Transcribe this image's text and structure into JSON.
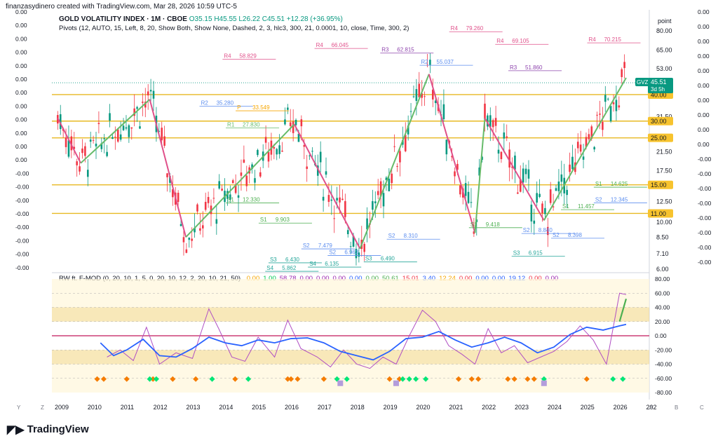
{
  "header": {
    "snapshot": "finanzasydinero created with TradingView.com, Mar 28, 2026 10:59 UTC-5"
  },
  "symbol": {
    "name": "GOLD VOLATILITY INDEX · 1M · CBOE",
    "ohlc": "O35.15  H45.55  L26.22  C45.51  +12.28 (+36.95%)"
  },
  "pivots_legend": "Pivots (12, AUTO, 15, Left, 8, 20, Show Both, Show None, Dashed, 2, 3, hlc3, 300, 21, 0.0001, 10, close, Time, 300, 2)",
  "indicator": {
    "name": "RW ft. F-MOD (0, 20, 10, 1, 5, 0, 20, 10, 12, 2, 20, 10, 21, 50)",
    "values": [
      {
        "text": "0.00",
        "color": "#f7a600"
      },
      {
        "text": "1.00",
        "color": "#00c853"
      },
      {
        "text": "58.78",
        "color": "#9c27b0"
      },
      {
        "text": "0.00",
        "color": "#9c27b0"
      },
      {
        "text": "0.00",
        "color": "#9c27b0"
      },
      {
        "text": "0.00",
        "color": "#9c27b0"
      },
      {
        "text": "0.00",
        "color": "#2962ff"
      },
      {
        "text": "0.00",
        "color": "#4caf50"
      },
      {
        "text": "50.61",
        "color": "#4caf50"
      },
      {
        "text": "15.01",
        "color": "#f23645"
      },
      {
        "text": "3.40",
        "color": "#2962ff"
      },
      {
        "text": "12.24",
        "color": "#f7a600"
      },
      {
        "text": "0.00",
        "color": "#f23645"
      },
      {
        "text": "0.00",
        "color": "#2962ff"
      },
      {
        "text": "0.00",
        "color": "#2962ff"
      },
      {
        "text": "19.12",
        "color": "#2962ff"
      },
      {
        "text": "0.00",
        "color": "#f23645"
      },
      {
        "text": "0.00",
        "color": "#9c27b0"
      }
    ]
  },
  "brand": "TradingView",
  "chart_data": {
    "type": "candlestick",
    "scale": "log",
    "price_axis_label": "point",
    "price_ticks": [
      80.0,
      65.0,
      53.0,
      40.0,
      31.5,
      25.0,
      21.5,
      17.5,
      12.5,
      10.0,
      8.5,
      7.1,
      6.0
    ],
    "last_price": "45.51",
    "last_price_symbol": "GVZ",
    "countdown": "3d 5h",
    "horizontal_levels": [
      {
        "value": 40.0,
        "label": "40.00"
      },
      {
        "value": 30.0,
        "label": "30.00"
      },
      {
        "value": 25.0,
        "label": "25.00"
      },
      {
        "value": 15.0,
        "label": "15.00"
      },
      {
        "value": 11.0,
        "label": "11.00"
      }
    ],
    "left_axis_labels": [
      "0.00",
      "0.00",
      "0.00",
      "0.00",
      "0.00",
      "0.00",
      "0.00",
      "0.00",
      "0.00",
      "0.00",
      "0.00",
      "0.00",
      "-0.00",
      "-0.00",
      "-0.00",
      "-0.00",
      "-0.00",
      "-0.00",
      "-0.00",
      "-0.00"
    ],
    "right_axis_labels": [
      "0.00",
      "0.00",
      "0.00",
      "0.00",
      "0.00",
      "0.00",
      "0.00",
      "0.00",
      "0.00",
      "0.00",
      "-0.00",
      "-0.00",
      "-0.00",
      "-0.00",
      "-0.00",
      "-0.00",
      "-0.00",
      "-0.00"
    ],
    "x_axis_ticks": [
      "2009",
      "2010",
      "2011",
      "2012",
      "2013",
      "2014",
      "2015",
      "2016",
      "2017",
      "2018",
      "2019",
      "2020",
      "2021",
      "2022",
      "2023",
      "2024",
      "2025",
      "2026",
      "202"
    ],
    "zigzag": [
      {
        "t": 2008.9,
        "v": 31.0
      },
      {
        "t": 2009.6,
        "v": 19.0
      },
      {
        "t": 2011.7,
        "v": 38.0
      },
      {
        "t": 2012.8,
        "v": 8.5
      },
      {
        "t": 2016.1,
        "v": 29.0
      },
      {
        "t": 2018.1,
        "v": 7.5
      },
      {
        "t": 2020.2,
        "v": 50.0
      },
      {
        "t": 2021.6,
        "v": 8.9
      },
      {
        "t": 2021.9,
        "v": 31.0
      },
      {
        "t": 2023.7,
        "v": 10.2
      },
      {
        "t": 2026.2,
        "v": 48.0
      }
    ],
    "pivot_labels": [
      {
        "text": "R4",
        "value": "58.829",
        "t": 2014.3
      },
      {
        "text": "R4",
        "value": "66.045",
        "t": 2017.1
      },
      {
        "text": "R4",
        "value": "79.260",
        "t": 2021.2
      },
      {
        "text": "R4",
        "value": "69.105",
        "t": 2022.6
      },
      {
        "text": "R4",
        "value": "70.215",
        "t": 2025.4
      },
      {
        "text": "R3",
        "value": "62.815",
        "t": 2019.1
      },
      {
        "text": "R3",
        "value": "51.860",
        "t": 2023.0
      },
      {
        "text": "R2",
        "value": "35.280",
        "t": 2013.6
      },
      {
        "text": "R2",
        "value": "55.037",
        "t": 2020.3
      },
      {
        "text": "R1",
        "value": "27.830",
        "t": 2014.4
      },
      {
        "text": "P",
        "value": "33.549",
        "t": 2014.7
      },
      {
        "text": "S1",
        "value": "12.330",
        "t": 2014.4
      },
      {
        "text": "S1",
        "value": "9.903",
        "t": 2015.4
      },
      {
        "text": "S1",
        "value": "9.418",
        "t": 2021.8
      },
      {
        "text": "S1",
        "value": "11.457",
        "t": 2024.6
      },
      {
        "text": "S1",
        "value": "14.625",
        "t": 2025.6
      },
      {
        "text": "S2",
        "value": "7.479",
        "t": 2016.7
      },
      {
        "text": "S2",
        "value": "6.963",
        "t": 2017.5
      },
      {
        "text": "S2",
        "value": "8.310",
        "t": 2019.3
      },
      {
        "text": "S2",
        "value": "8.840",
        "t": 2023.4
      },
      {
        "text": "S2",
        "value": "8.398",
        "t": 2024.3
      },
      {
        "text": "S2",
        "value": "12.345",
        "t": 2025.6
      },
      {
        "text": "S3",
        "value": "6.430",
        "t": 2015.7
      },
      {
        "text": "S3",
        "value": "6.490",
        "t": 2018.6
      },
      {
        "text": "S3",
        "value": "6.915",
        "t": 2023.1
      },
      {
        "text": "S4",
        "value": "5.862",
        "t": 2015.6
      },
      {
        "text": "S4",
        "value": "6.135",
        "t": 2016.9
      }
    ],
    "oscillator": {
      "y_ticks": [
        80.0,
        60.0,
        40.0,
        20.0,
        0.0,
        -20.0,
        -40.0,
        -60.0,
        -80.0
      ],
      "zones": [
        {
          "from": 20.0,
          "to": 40.0,
          "color": "#f2d680"
        },
        {
          "from": -40.0,
          "to": -20.0,
          "color": "#f2d680"
        }
      ],
      "blue_line": [
        {
          "t": 2010.2,
          "v": -10
        },
        {
          "t": 2010.6,
          "v": -28
        },
        {
          "t": 2011.0,
          "v": -20
        },
        {
          "t": 2011.5,
          "v": -5
        },
        {
          "t": 2012.0,
          "v": -28
        },
        {
          "t": 2012.5,
          "v": -30
        },
        {
          "t": 2013.0,
          "v": -18
        },
        {
          "t": 2013.5,
          "v": -2
        },
        {
          "t": 2014.0,
          "v": -10
        },
        {
          "t": 2014.5,
          "v": -14
        },
        {
          "t": 2015.0,
          "v": -6
        },
        {
          "t": 2015.5,
          "v": -10
        },
        {
          "t": 2016.0,
          "v": -4
        },
        {
          "t": 2016.5,
          "v": -3
        },
        {
          "t": 2017.0,
          "v": -10
        },
        {
          "t": 2017.5,
          "v": -22
        },
        {
          "t": 2018.0,
          "v": -28
        },
        {
          "t": 2018.5,
          "v": -34
        },
        {
          "t": 2019.0,
          "v": -22
        },
        {
          "t": 2019.5,
          "v": -4
        },
        {
          "t": 2020.0,
          "v": -2
        },
        {
          "t": 2020.5,
          "v": 6
        },
        {
          "t": 2021.0,
          "v": -6
        },
        {
          "t": 2021.5,
          "v": -16
        },
        {
          "t": 2022.0,
          "v": -10
        },
        {
          "t": 2022.5,
          "v": -2
        },
        {
          "t": 2023.0,
          "v": -10
        },
        {
          "t": 2023.5,
          "v": -24
        },
        {
          "t": 2024.0,
          "v": -16
        },
        {
          "t": 2024.5,
          "v": 2
        },
        {
          "t": 2025.0,
          "v": 12
        },
        {
          "t": 2025.5,
          "v": 8
        },
        {
          "t": 2026.0,
          "v": 14
        },
        {
          "t": 2026.2,
          "v": 16
        }
      ],
      "pink_line": [
        {
          "t": 2010.4,
          "v": -30
        },
        {
          "t": 2010.8,
          "v": -20
        },
        {
          "t": 2011.2,
          "v": -35
        },
        {
          "t": 2011.6,
          "v": 12
        },
        {
          "t": 2012.0,
          "v": -40
        },
        {
          "t": 2012.5,
          "v": -24
        },
        {
          "t": 2013.0,
          "v": -32
        },
        {
          "t": 2013.5,
          "v": 38
        },
        {
          "t": 2013.8,
          "v": 10
        },
        {
          "t": 2014.2,
          "v": -30
        },
        {
          "t": 2014.6,
          "v": -36
        },
        {
          "t": 2015.0,
          "v": -2
        },
        {
          "t": 2015.5,
          "v": -30
        },
        {
          "t": 2015.9,
          "v": 22
        },
        {
          "t": 2016.3,
          "v": -18
        },
        {
          "t": 2016.8,
          "v": -30
        },
        {
          "t": 2017.2,
          "v": -44
        },
        {
          "t": 2017.6,
          "v": -20
        },
        {
          "t": 2018.0,
          "v": -40
        },
        {
          "t": 2018.4,
          "v": -46
        },
        {
          "t": 2018.8,
          "v": -30
        },
        {
          "t": 2019.2,
          "v": -40
        },
        {
          "t": 2019.6,
          "v": 0
        },
        {
          "t": 2020.0,
          "v": 36
        },
        {
          "t": 2020.4,
          "v": 20
        },
        {
          "t": 2020.8,
          "v": -14
        },
        {
          "t": 2021.2,
          "v": -26
        },
        {
          "t": 2021.6,
          "v": -40
        },
        {
          "t": 2022.0,
          "v": 10
        },
        {
          "t": 2022.4,
          "v": -24
        },
        {
          "t": 2022.8,
          "v": -14
        },
        {
          "t": 2023.2,
          "v": -38
        },
        {
          "t": 2023.6,
          "v": -30
        },
        {
          "t": 2024.0,
          "v": -22
        },
        {
          "t": 2024.4,
          "v": -8
        },
        {
          "t": 2024.8,
          "v": 14
        },
        {
          "t": 2025.2,
          "v": -6
        },
        {
          "t": 2025.6,
          "v": -40
        },
        {
          "t": 2026.0,
          "v": 60
        },
        {
          "t": 2026.2,
          "v": 58
        }
      ],
      "green_signal": [
        {
          "t": 2026.0,
          "v": 20
        },
        {
          "t": 2026.2,
          "v": 52
        }
      ],
      "orange_markers_t": [
        2010.1,
        2010.3,
        2011.0,
        2011.8,
        2012.4,
        2013.1,
        2014.3,
        2015.9,
        2016.0,
        2016.2,
        2017.0,
        2019.0,
        2019.3,
        2021.1,
        2021.5,
        2021.7,
        2022.6,
        2022.8,
        2023.2,
        2023.4,
        2025.0
      ],
      "green_markers_t": [
        2011.7,
        2011.9,
        2013.6,
        2014.7,
        2017.4,
        2017.7,
        2019.4,
        2019.6,
        2019.8,
        2020.1,
        2023.7,
        2025.8,
        2026.1
      ],
      "blue_markers_t": [
        2017.5,
        2019.2,
        2023.7
      ]
    }
  }
}
